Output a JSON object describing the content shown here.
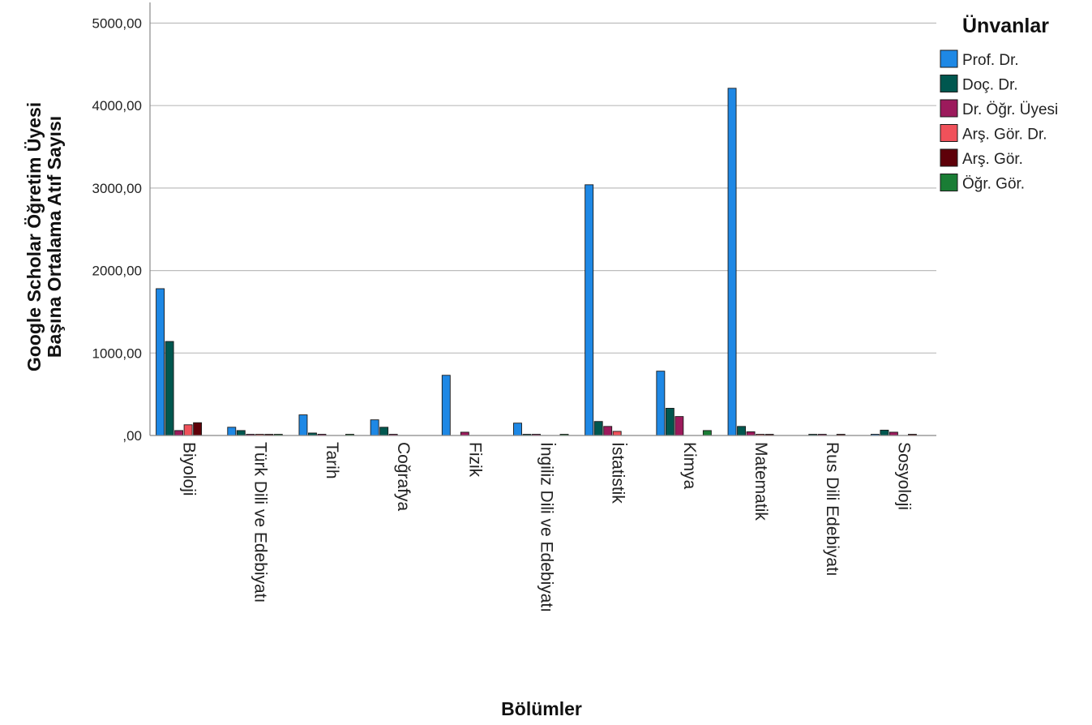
{
  "chart_data": {
    "type": "bar",
    "xlabel": "Bölümler",
    "ylabel_lines": [
      "Google Scholar Öğretim Üyesi",
      "Başına Ortalama Atıf Sayısı"
    ],
    "ylim": [
      0,
      5200
    ],
    "yticks": [
      0,
      1000,
      2000,
      3000,
      4000,
      5000
    ],
    "ytick_labels": [
      ",00",
      "1000,00",
      "2000,00",
      "3000,00",
      "4000,00",
      "5000,00"
    ],
    "grid": "horizontal",
    "legend_position": "top-right",
    "legend_title": "Ünvanlar",
    "categories": [
      "Biyoloji",
      "Türk Dili ve Edebiyatı",
      "Tarih",
      "Coğrafya",
      "Fizik",
      "İngiliz Dili ve Edebiyatı",
      "İstatistik",
      "Kimya",
      "Matematik",
      "Rus Dili Edebiyatı",
      "Sosyoloji"
    ],
    "series": [
      {
        "name": "Prof. Dr.",
        "color": "#1e88e5",
        "values": [
          1780,
          100,
          250,
          190,
          730,
          150,
          3040,
          780,
          4210,
          null,
          5
        ]
      },
      {
        "name": "Doç. Dr.",
        "color": "#00574f",
        "values": [
          1140,
          60,
          30,
          100,
          null,
          0,
          170,
          330,
          110,
          0,
          65
        ]
      },
      {
        "name": "Dr. Öğr. Üyesi",
        "color": "#9c1a5c",
        "values": [
          60,
          5,
          15,
          10,
          40,
          0,
          110,
          230,
          45,
          0,
          40
        ]
      },
      {
        "name": "Arş. Gör. Dr.",
        "color": "#f0515a",
        "values": [
          130,
          5,
          null,
          null,
          null,
          null,
          50,
          null,
          5,
          null,
          null
        ]
      },
      {
        "name": "Arş. Gör.",
        "color": "#5e0009",
        "values": [
          155,
          5,
          null,
          null,
          null,
          null,
          null,
          null,
          5,
          0,
          5
        ]
      },
      {
        "name": "Öğr. Gör.",
        "color": "#1a7d35",
        "values": [
          null,
          5,
          5,
          null,
          null,
          0,
          null,
          60,
          null,
          null,
          null
        ]
      }
    ]
  }
}
